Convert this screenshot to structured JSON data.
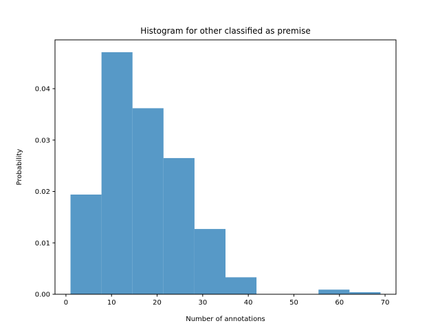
{
  "chart_data": {
    "type": "bar",
    "title": "Histogram for other classified as premise",
    "xlabel": "Number of annotations",
    "ylabel": "Probability",
    "xlim": [
      -2.4,
      72.4
    ],
    "ylim": [
      0,
      0.0495
    ],
    "xticks": [
      0,
      10,
      20,
      30,
      40,
      50,
      60,
      70
    ],
    "xtick_labels": [
      "0",
      "10",
      "20",
      "30",
      "40",
      "50",
      "60",
      "70"
    ],
    "yticks": [
      0,
      0.01,
      0.02,
      0.03,
      0.04
    ],
    "ytick_labels": [
      "0.00",
      "0.01",
      "0.02",
      "0.03",
      "0.04"
    ],
    "bin_edges": [
      1,
      7.8,
      14.6,
      21.4,
      28.2,
      35.0,
      41.8,
      48.6,
      55.4,
      62.2,
      69
    ],
    "values": [
      0.0194,
      0.0471,
      0.0362,
      0.0265,
      0.0127,
      0.0033,
      0,
      0,
      0.0009,
      0.0004
    ],
    "bar_color": "#5799c7",
    "grid": false,
    "legend": false
  }
}
